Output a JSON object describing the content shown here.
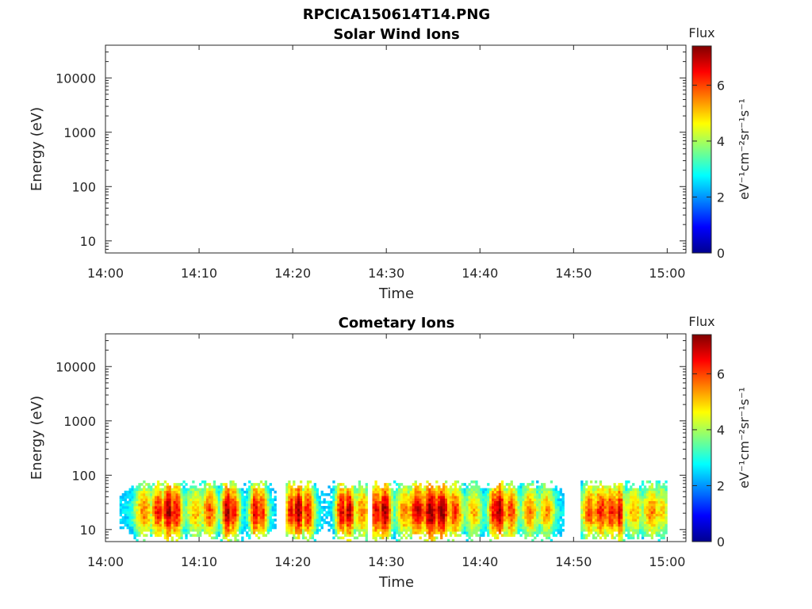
{
  "figure_title": "RPCICA150614T14.PNG",
  "colormap": [
    "#00008f",
    "#0000ff",
    "#0080ff",
    "#00ffff",
    "#80ff80",
    "#ffff00",
    "#ff8000",
    "#ff0000",
    "#800000"
  ],
  "chart_data": [
    {
      "type": "heatmap",
      "title": "Solar Wind Ions",
      "xlabel": "Time",
      "ylabel": "Energy (eV)",
      "x_tick_labels": [
        "14:00",
        "14:10",
        "14:20",
        "14:30",
        "14:40",
        "14:50",
        "15:00"
      ],
      "y_tick_labels": [
        "10",
        "100",
        "1000",
        "10000"
      ],
      "xlim_minutes": [
        0,
        62
      ],
      "ylim_eV": [
        6,
        40000
      ],
      "yscale": "log",
      "colorbar": {
        "title": "Flux",
        "label": "eV⁻¹cm⁻²sr⁻¹s⁻¹",
        "tick_labels": [
          "0",
          "2",
          "4",
          "6"
        ],
        "range": [
          0,
          7.4
        ]
      },
      "cells": []
    },
    {
      "type": "heatmap",
      "title": "Cometary Ions",
      "xlabel": "Time",
      "ylabel": "Energy (eV)",
      "x_tick_labels": [
        "14:00",
        "14:10",
        "14:20",
        "14:30",
        "14:40",
        "14:50",
        "15:00"
      ],
      "y_tick_labels": [
        "10",
        "100",
        "1000",
        "10000"
      ],
      "xlim_minutes": [
        0,
        62
      ],
      "ylim_eV": [
        6,
        40000
      ],
      "yscale": "log",
      "colorbar": {
        "title": "Flux",
        "label": "eV⁻¹cm⁻²sr⁻¹s⁻¹",
        "tick_labels": [
          "0",
          "2",
          "4",
          "6"
        ],
        "range": [
          0,
          7.4
        ]
      },
      "data_minutes": [
        1.5,
        60
      ],
      "energy_band_eV": [
        6,
        80
      ],
      "peaks": [
        {
          "t": 4.0,
          "v": 5.6,
          "w": 0.8
        },
        {
          "t": 5.5,
          "v": 6.4,
          "w": 0.6
        },
        {
          "t": 6.6,
          "v": 7.3,
          "w": 0.5
        },
        {
          "t": 7.4,
          "v": 6.6,
          "w": 0.6
        },
        {
          "t": 9.5,
          "v": 5.2,
          "w": 0.8
        },
        {
          "t": 11.0,
          "v": 6.0,
          "w": 0.7
        },
        {
          "t": 12.9,
          "v": 7.2,
          "w": 0.5
        },
        {
          "t": 13.6,
          "v": 6.4,
          "w": 0.5
        },
        {
          "t": 15.9,
          "v": 6.8,
          "w": 0.5
        },
        {
          "t": 16.6,
          "v": 6.2,
          "w": 0.5
        },
        {
          "t": 19.7,
          "v": 6.6,
          "w": 0.5
        },
        {
          "t": 20.5,
          "v": 7.3,
          "w": 0.5
        },
        {
          "t": 21.5,
          "v": 6.4,
          "w": 0.6
        },
        {
          "t": 25.1,
          "v": 6.8,
          "w": 0.5
        },
        {
          "t": 25.9,
          "v": 7.0,
          "w": 0.5
        },
        {
          "t": 27.3,
          "v": 5.6,
          "w": 0.7
        },
        {
          "t": 28.8,
          "v": 6.6,
          "w": 0.6
        },
        {
          "t": 29.7,
          "v": 7.2,
          "w": 0.6
        },
        {
          "t": 31.8,
          "v": 5.6,
          "w": 0.7
        },
        {
          "t": 33.2,
          "v": 6.8,
          "w": 0.8
        },
        {
          "t": 34.6,
          "v": 7.4,
          "w": 0.7
        },
        {
          "t": 35.8,
          "v": 7.3,
          "w": 0.7
        },
        {
          "t": 37.2,
          "v": 6.2,
          "w": 0.7
        },
        {
          "t": 39.2,
          "v": 5.2,
          "w": 0.7
        },
        {
          "t": 41.4,
          "v": 6.6,
          "w": 0.5
        },
        {
          "t": 42.0,
          "v": 7.3,
          "w": 0.5
        },
        {
          "t": 43.2,
          "v": 6.2,
          "w": 0.6
        },
        {
          "t": 45.2,
          "v": 5.6,
          "w": 0.7
        },
        {
          "t": 47.0,
          "v": 5.4,
          "w": 0.7
        },
        {
          "t": 51.6,
          "v": 6.0,
          "w": 0.7
        },
        {
          "t": 52.8,
          "v": 6.4,
          "w": 0.7
        },
        {
          "t": 53.9,
          "v": 6.4,
          "w": 0.6
        },
        {
          "t": 54.8,
          "v": 6.8,
          "w": 0.4
        },
        {
          "t": 56.3,
          "v": 5.2,
          "w": 0.8
        },
        {
          "t": 58.2,
          "v": 5.6,
          "w": 0.8
        },
        {
          "t": 59.3,
          "v": 5.0,
          "w": 0.6
        }
      ],
      "gaps_minutes": [
        [
          18.2,
          19.2
        ],
        [
          28.0,
          28.3
        ],
        [
          48.8,
          50.6
        ]
      ]
    }
  ]
}
